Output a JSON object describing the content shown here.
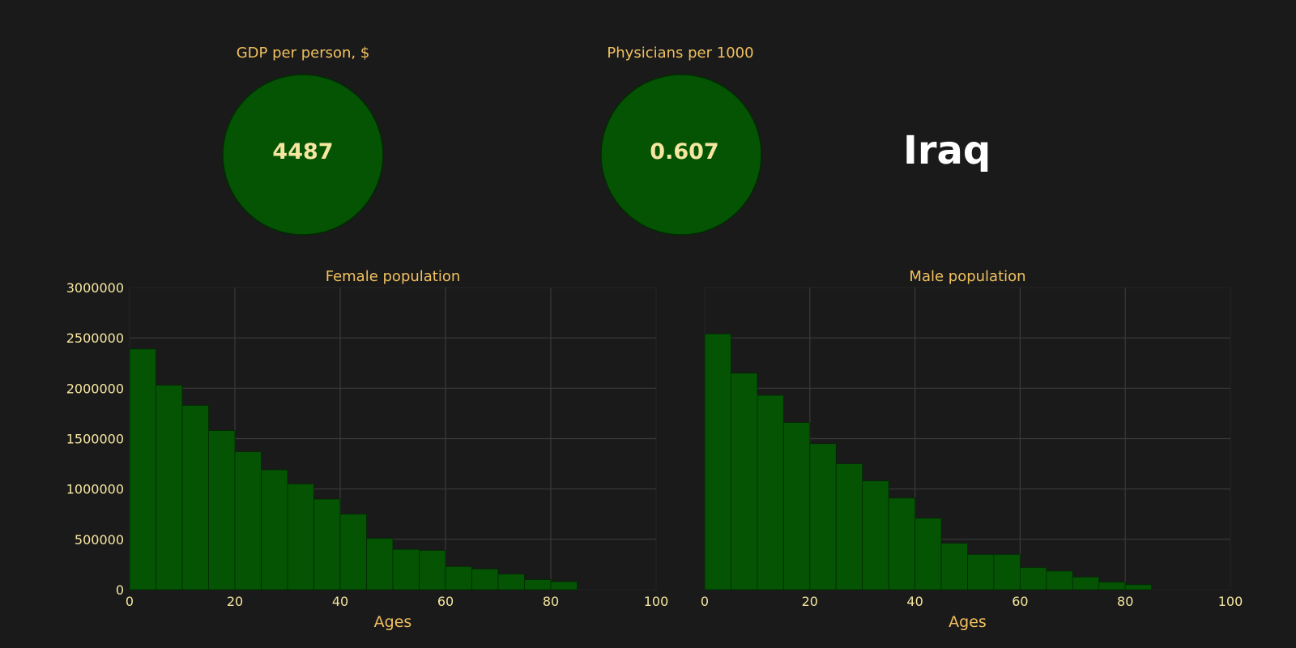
{
  "country": "Iraq",
  "indicators": [
    {
      "title": "GDP per person, $",
      "value": "4487"
    },
    {
      "title": "Physicians per 1000",
      "value": "0.607"
    }
  ],
  "colors": {
    "background": "#1a1a1a",
    "bar_fill": "#045404",
    "bar_edge": "#022a02",
    "grid": "#3a3a3a",
    "title": "#f0c060",
    "tick_label": "#f5e6a0",
    "country": "#ffffff"
  },
  "chart_data": [
    {
      "type": "bar",
      "title": "Female population",
      "xlabel": "Ages",
      "ylabel": "",
      "bin_width": 5,
      "bin_starts": [
        0,
        5,
        10,
        15,
        20,
        25,
        30,
        35,
        40,
        45,
        50,
        55,
        60,
        65,
        70,
        75,
        80
      ],
      "values": [
        2390000,
        2030000,
        1830000,
        1580000,
        1370000,
        1190000,
        1050000,
        900000,
        750000,
        510000,
        400000,
        390000,
        230000,
        205000,
        155000,
        100000,
        80000
      ],
      "xlim": [
        0,
        100
      ],
      "ylim": [
        0,
        3000000
      ],
      "xticks": [
        0,
        20,
        40,
        60,
        80,
        100
      ],
      "yticks": [
        0,
        500000,
        1000000,
        1500000,
        2000000,
        2500000,
        3000000
      ],
      "show_yticklabels": true,
      "grid": true
    },
    {
      "type": "bar",
      "title": "Male population",
      "xlabel": "Ages",
      "ylabel": "",
      "bin_width": 5,
      "bin_starts": [
        0,
        5,
        10,
        15,
        20,
        25,
        30,
        35,
        40,
        45,
        50,
        55,
        60,
        65,
        70,
        75,
        80
      ],
      "values": [
        2540000,
        2150000,
        1930000,
        1660000,
        1450000,
        1250000,
        1080000,
        910000,
        710000,
        460000,
        350000,
        350000,
        220000,
        185000,
        125000,
        75000,
        50000
      ],
      "xlim": [
        0,
        100
      ],
      "ylim": [
        0,
        3000000
      ],
      "xticks": [
        0,
        20,
        40,
        60,
        80,
        100
      ],
      "yticks": [
        0,
        500000,
        1000000,
        1500000,
        2000000,
        2500000,
        3000000
      ],
      "show_yticklabels": false,
      "grid": true
    }
  ]
}
